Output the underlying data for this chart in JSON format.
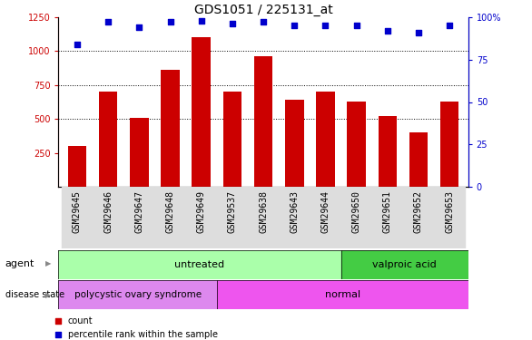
{
  "title": "GDS1051 / 225131_at",
  "samples": [
    "GSM29645",
    "GSM29646",
    "GSM29647",
    "GSM29648",
    "GSM29649",
    "GSM29537",
    "GSM29638",
    "GSM29643",
    "GSM29644",
    "GSM29650",
    "GSM29651",
    "GSM29652",
    "GSM29653"
  ],
  "bar_values": [
    300,
    700,
    510,
    860,
    1100,
    700,
    960,
    640,
    700,
    630,
    520,
    400,
    630
  ],
  "dot_values_pct": [
    84,
    97,
    94,
    97,
    98,
    96,
    97,
    95,
    95,
    95,
    92,
    91,
    95
  ],
  "bar_color": "#cc0000",
  "dot_color": "#0000cc",
  "ylim_left": [
    0,
    1250
  ],
  "ylim_right": [
    0,
    100
  ],
  "yticks_left": [
    250,
    500,
    750,
    1000,
    1250
  ],
  "yticks_right": [
    0,
    25,
    50,
    75,
    100
  ],
  "grid_values": [
    500,
    750,
    1000
  ],
  "agent_untreated_color": "#aaffaa",
  "agent_valproic_color": "#44cc44",
  "disease_polycystic_color": "#dd88ee",
  "disease_normal_color": "#ee55ee",
  "label_fontsize": 8,
  "tick_fontsize": 7,
  "title_fontsize": 10
}
